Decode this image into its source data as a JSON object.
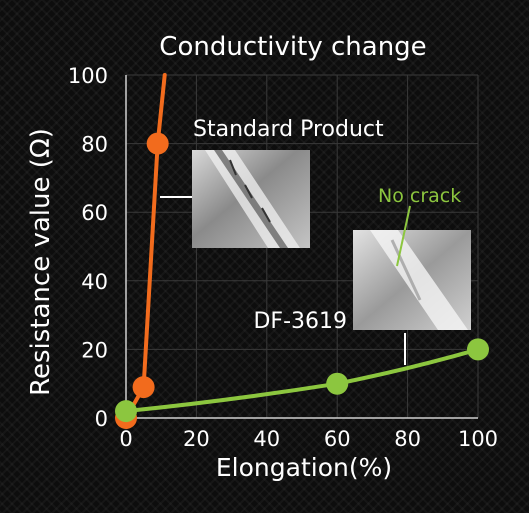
{
  "chart_data": {
    "type": "line",
    "title": "Conductivity change",
    "xlabel": "Elongation(%)",
    "ylabel": "Resistance value (Ω)",
    "xlim": [
      0,
      100
    ],
    "ylim": [
      0,
      100
    ],
    "xticks": [
      "0",
      "20",
      "40",
      "60",
      "80",
      "100"
    ],
    "yticks": [
      "0",
      "20",
      "40",
      "60",
      "80",
      "100"
    ],
    "grid": true,
    "series": [
      {
        "name": "Standard Product",
        "color": "#f26b1d",
        "points": [
          [
            0,
            0
          ],
          [
            5,
            9
          ],
          [
            9,
            80
          ]
        ],
        "curve_end": [
          11,
          100
        ]
      },
      {
        "name": "DF-3619",
        "color": "#8cc63f",
        "points": [
          [
            0,
            2
          ],
          [
            60,
            10
          ],
          [
            100,
            20
          ]
        ]
      }
    ],
    "annotations": [
      {
        "text": "No crack",
        "color": "#8cc63f"
      }
    ]
  }
}
